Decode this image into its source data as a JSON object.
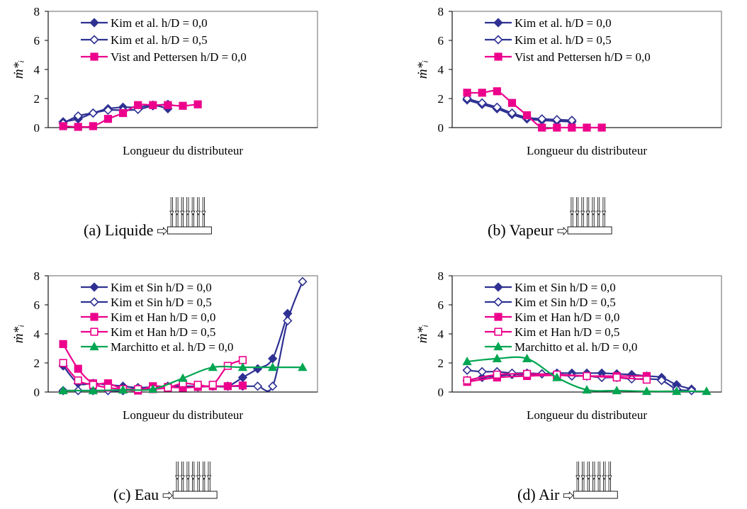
{
  "figure": {
    "ylabel": "ṁ*ᵢ"
  },
  "chart_data": [
    {
      "id": "a",
      "type": "line",
      "caption": "(a) Liquide",
      "xlabel": "Longueur du distributeur",
      "ylim": [
        0,
        8
      ],
      "yticks": [
        0,
        2,
        4,
        6,
        8
      ],
      "legend_position": "top-left",
      "series": [
        {
          "name": "Kim et al. h/D = 0,0",
          "color": "#2e3192",
          "marker": "diamond-filled",
          "x": [
            1,
            2,
            3,
            4,
            5,
            6,
            7,
            8
          ],
          "y": [
            0.4,
            0.6,
            1.0,
            1.3,
            1.4,
            1.4,
            1.55,
            1.3
          ]
        },
        {
          "name": "Kim et al. h/D = 0,5",
          "color": "#2e3192",
          "marker": "diamond-open",
          "x": [
            1,
            2,
            3,
            4,
            5,
            6,
            7,
            8
          ],
          "y": [
            0.3,
            0.8,
            1.0,
            1.2,
            1.2,
            1.25,
            1.5,
            1.6
          ]
        },
        {
          "name": "Vist and Pettersen h/D = 0,0",
          "color": "#ec008c",
          "marker": "square-filled",
          "x": [
            1,
            2,
            3,
            4,
            5,
            6,
            7,
            8,
            9,
            10
          ],
          "y": [
            0.1,
            0.05,
            0.1,
            0.6,
            1.0,
            1.55,
            1.55,
            1.55,
            1.5,
            1.6
          ]
        }
      ]
    },
    {
      "id": "b",
      "type": "line",
      "caption": "(b) Vapeur",
      "xlabel": "Longueur du distributeur",
      "ylim": [
        0,
        8
      ],
      "yticks": [
        0,
        2,
        4,
        6,
        8
      ],
      "legend_position": "top-left",
      "series": [
        {
          "name": "Kim et al. h/D = 0,0",
          "color": "#2e3192",
          "marker": "diamond-filled",
          "x": [
            1,
            2,
            3,
            4,
            5,
            6,
            7,
            8
          ],
          "y": [
            1.9,
            1.6,
            1.3,
            0.9,
            0.6,
            0.5,
            0.45,
            0.4
          ]
        },
        {
          "name": "Kim et al. h/D = 0,5",
          "color": "#2e3192",
          "marker": "diamond-open",
          "x": [
            1,
            2,
            3,
            4,
            5,
            6,
            7,
            8
          ],
          "y": [
            2.0,
            1.7,
            1.4,
            1.0,
            0.7,
            0.6,
            0.55,
            0.5
          ]
        },
        {
          "name": "Vist and Pettersen h/D = 0,0",
          "color": "#ec008c",
          "marker": "square-filled",
          "x": [
            1,
            2,
            3,
            4,
            5,
            6,
            7,
            8,
            9,
            10
          ],
          "y": [
            2.4,
            2.4,
            2.5,
            1.7,
            0.85,
            0.0,
            0.0,
            0.0,
            0.0,
            0.0
          ]
        }
      ]
    },
    {
      "id": "c",
      "type": "line",
      "caption": "(c) Eau",
      "xlabel": "Longueur du distributeur",
      "ylim": [
        0,
        8
      ],
      "yticks": [
        0,
        2,
        4,
        6,
        8
      ],
      "legend_position": "top-left",
      "series": [
        {
          "name": "Kim et Sin h/D = 0,0",
          "color": "#2e3192",
          "marker": "diamond-filled",
          "x": [
            1,
            2,
            3,
            4,
            5,
            6,
            7,
            8,
            9,
            10,
            11,
            12,
            13,
            14,
            15,
            16
          ],
          "y": [
            1.8,
            0.6,
            0.6,
            0.5,
            0.4,
            0.3,
            0.35,
            0.4,
            0.4,
            0.35,
            0.4,
            0.4,
            1.0,
            1.6,
            2.3,
            5.4
          ]
        },
        {
          "name": "Kim et Sin h/D = 0,5",
          "color": "#2e3192",
          "marker": "diamond-open",
          "x": [
            1,
            2,
            3,
            4,
            5,
            6,
            7,
            8,
            9,
            10,
            11,
            12,
            13,
            14,
            15,
            16,
            17
          ],
          "y": [
            0.1,
            0.1,
            0.1,
            0.1,
            0.1,
            0.3,
            0.3,
            0.4,
            0.4,
            0.4,
            0.4,
            0.4,
            0.4,
            0.4,
            0.4,
            4.9,
            7.6
          ]
        },
        {
          "name": "Kim et Han h/D = 0,0",
          "color": "#ec008c",
          "marker": "square-filled",
          "x": [
            1,
            2,
            3,
            4,
            5,
            6,
            7,
            8,
            9,
            10,
            11,
            12,
            13
          ],
          "y": [
            3.3,
            1.6,
            0.6,
            0.6,
            0.2,
            0.1,
            0.4,
            0.35,
            0.3,
            0.35,
            0.4,
            0.4,
            0.45
          ]
        },
        {
          "name": "Kim et Han h/D = 0,5",
          "color": "#ec008c",
          "marker": "square-open",
          "x": [
            1,
            2,
            3,
            4,
            5,
            6,
            7,
            8,
            9,
            10,
            11,
            12,
            13
          ],
          "y": [
            2.0,
            0.8,
            0.5,
            0.3,
            0.2,
            0.2,
            0.2,
            0.3,
            0.6,
            0.5,
            0.5,
            1.8,
            2.2
          ]
        },
        {
          "name": "Marchitto et al. h/D = 0,0",
          "color": "#00a651",
          "marker": "triangle-filled",
          "x": [
            1,
            3,
            5,
            7,
            9,
            11,
            13,
            15,
            17
          ],
          "y": [
            0.1,
            0.1,
            0.15,
            0.2,
            0.95,
            1.7,
            1.7,
            1.7,
            1.7
          ]
        }
      ]
    },
    {
      "id": "d",
      "type": "line",
      "caption": "(d) Air",
      "xlabel": "Longueur du distributeur",
      "ylim": [
        0,
        8
      ],
      "yticks": [
        0,
        2,
        4,
        6,
        8
      ],
      "legend_position": "top-left",
      "series": [
        {
          "name": "Kim et Sin h/D = 0,0",
          "color": "#2e3192",
          "marker": "diamond-filled",
          "x": [
            1,
            2,
            3,
            4,
            5,
            6,
            7,
            8,
            9,
            10,
            11,
            12,
            13,
            14,
            15,
            16
          ],
          "y": [
            0.8,
            1.0,
            1.1,
            1.2,
            1.2,
            1.25,
            1.3,
            1.3,
            1.3,
            1.3,
            1.25,
            1.2,
            1.1,
            1.0,
            0.5,
            0.2
          ]
        },
        {
          "name": "Kim et Sin h/D = 0,5",
          "color": "#2e3192",
          "marker": "diamond-open",
          "x": [
            1,
            2,
            3,
            4,
            5,
            6,
            7,
            8,
            9,
            10,
            11,
            12,
            13,
            14,
            15,
            16
          ],
          "y": [
            1.5,
            1.4,
            1.4,
            1.3,
            1.3,
            1.25,
            1.2,
            1.1,
            1.1,
            1.0,
            1.0,
            0.9,
            0.9,
            0.8,
            0.2,
            0.1
          ]
        },
        {
          "name": "Kim et Han h/D = 0,0",
          "color": "#ec008c",
          "marker": "square-filled",
          "x": [
            1,
            3,
            5,
            7,
            9,
            11,
            13
          ],
          "y": [
            0.7,
            1.0,
            1.1,
            1.15,
            1.1,
            1.1,
            1.1
          ]
        },
        {
          "name": "Kim et Han h/D = 0,5",
          "color": "#ec008c",
          "marker": "square-open",
          "x": [
            1,
            3,
            5,
            7,
            9,
            11,
            13
          ],
          "y": [
            0.8,
            1.2,
            1.25,
            1.2,
            1.1,
            1.0,
            0.85
          ]
        },
        {
          "name": "Marchitto et al. h/D = 0,0",
          "color": "#00a651",
          "marker": "triangle-filled",
          "x": [
            1,
            3,
            5,
            7,
            9,
            11,
            13,
            15,
            17
          ],
          "y": [
            2.1,
            2.3,
            2.3,
            1.0,
            0.15,
            0.1,
            0.05,
            0.05,
            0.05
          ]
        }
      ]
    }
  ]
}
